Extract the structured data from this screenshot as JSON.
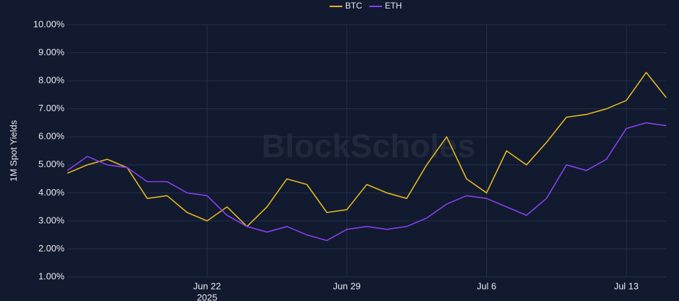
{
  "chart_data": {
    "type": "line",
    "y_label": "1M Spot Yields",
    "watermark": "BlockScholes",
    "x_axis_year": "2025",
    "x": [
      "2025-06-15",
      "2025-06-16",
      "2025-06-17",
      "2025-06-18",
      "2025-06-19",
      "2025-06-20",
      "2025-06-21",
      "2025-06-22",
      "2025-06-23",
      "2025-06-24",
      "2025-06-25",
      "2025-06-26",
      "2025-06-27",
      "2025-06-28",
      "2025-06-29",
      "2025-06-30",
      "2025-07-01",
      "2025-07-02",
      "2025-07-03",
      "2025-07-04",
      "2025-07-05",
      "2025-07-06",
      "2025-07-07",
      "2025-07-08",
      "2025-07-09",
      "2025-07-10",
      "2025-07-11",
      "2025-07-12",
      "2025-07-13",
      "2025-07-14",
      "2025-07-15"
    ],
    "series": [
      {
        "name": "BTC",
        "color": "#e6b820",
        "values": [
          4.7,
          5.0,
          5.2,
          4.9,
          3.8,
          3.9,
          3.3,
          3.0,
          3.5,
          2.8,
          3.5,
          4.5,
          4.3,
          3.3,
          3.4,
          4.3,
          4.0,
          3.8,
          5.0,
          6.0,
          4.5,
          4.0,
          5.5,
          5.0,
          5.8,
          6.7,
          6.8,
          7.0,
          7.3,
          8.3,
          7.4
        ]
      },
      {
        "name": "ETH",
        "color": "#8a3ff0",
        "values": [
          4.8,
          5.3,
          5.0,
          4.9,
          4.4,
          4.4,
          4.0,
          3.9,
          3.2,
          2.8,
          2.6,
          2.8,
          2.5,
          2.3,
          2.7,
          2.8,
          2.7,
          2.8,
          3.1,
          3.6,
          3.9,
          3.8,
          3.5,
          3.2,
          3.8,
          5.0,
          4.8,
          5.2,
          6.3,
          6.5,
          6.4
        ]
      }
    ],
    "xlim": [
      "2025-06-15",
      "2025-07-15"
    ],
    "xticks": [
      {
        "value": "2025-06-22",
        "label": "Jun 22"
      },
      {
        "value": "2025-06-29",
        "label": "Jun 29"
      },
      {
        "value": "2025-07-06",
        "label": "Jul 6"
      },
      {
        "value": "2025-07-13",
        "label": "Jul 13"
      }
    ],
    "ylim": [
      1,
      10
    ],
    "yticks": [
      {
        "value": 1,
        "label": "1.00%"
      },
      {
        "value": 2,
        "label": "2.00%"
      },
      {
        "value": 3,
        "label": "3.00%"
      },
      {
        "value": 4,
        "label": "4.00%"
      },
      {
        "value": 5,
        "label": "5.00%"
      },
      {
        "value": 6,
        "label": "6.00%"
      },
      {
        "value": 7,
        "label": "7.00%"
      },
      {
        "value": 8,
        "label": "8.00%"
      },
      {
        "value": 9,
        "label": "9.00%"
      },
      {
        "value": 10,
        "label": "10.00%"
      }
    ],
    "grid": true
  }
}
